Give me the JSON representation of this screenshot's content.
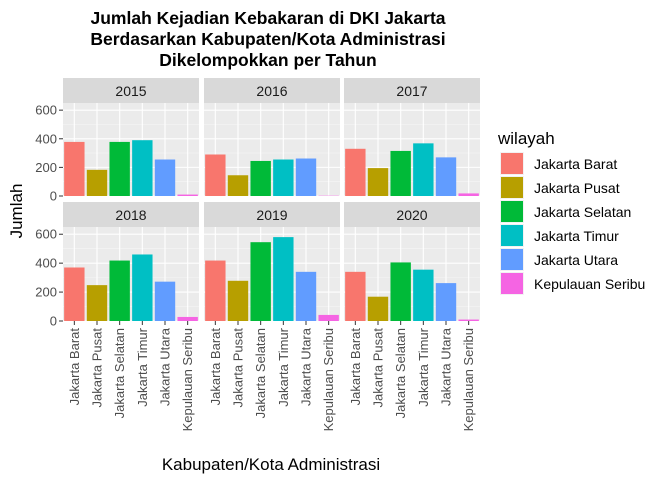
{
  "chart_data": {
    "type": "bar",
    "title": [
      "Jumlah Kejadian Kebakaran di DKI Jakarta",
      "Berdasarkan Kabupaten/Kota Administrasi",
      "Dikelompokkan per Tahun"
    ],
    "xlabel": "Kabupaten/Kota Administrasi",
    "ylabel": "Jumlah",
    "ylim": [
      0,
      650
    ],
    "yticks": [
      0,
      200,
      400,
      600
    ],
    "grid": true,
    "legend": {
      "title": "wilayah",
      "position": "right"
    },
    "categories": [
      "Jakarta Barat",
      "Jakarta Pusat",
      "Jakarta Selatan",
      "Jakarta Timur",
      "Jakarta Utara",
      "Kepulauan Seribu"
    ],
    "colors": [
      "#F8766D",
      "#B79F00",
      "#00BA38",
      "#00BFC4",
      "#619CFF",
      "#F564E3"
    ],
    "facets": [
      {
        "label": "2015",
        "values": [
          378,
          183,
          378,
          390,
          255,
          10
        ]
      },
      {
        "label": "2016",
        "values": [
          290,
          145,
          245,
          255,
          262,
          2
        ]
      },
      {
        "label": "2017",
        "values": [
          330,
          195,
          315,
          368,
          270,
          18
        ]
      },
      {
        "label": "2018",
        "values": [
          370,
          248,
          418,
          460,
          272,
          28
        ]
      },
      {
        "label": "2019",
        "values": [
          418,
          278,
          545,
          580,
          340,
          42
        ]
      },
      {
        "label": "2020",
        "values": [
          340,
          168,
          405,
          355,
          262,
          10
        ]
      }
    ]
  }
}
